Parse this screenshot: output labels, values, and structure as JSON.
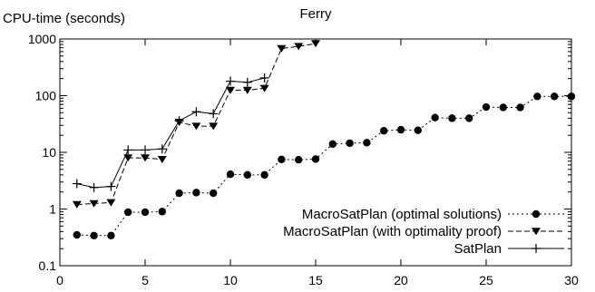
{
  "chart_data": {
    "type": "line",
    "title": "Ferry",
    "ylabel": "CPU-time (seconds)",
    "xlabel": "",
    "yscale": "log",
    "xlim": [
      0,
      30
    ],
    "ylim": [
      0.1,
      1000
    ],
    "xticks": [
      0,
      5,
      10,
      15,
      20,
      25,
      30
    ],
    "yticks": [
      0.1,
      1,
      10,
      100,
      1000
    ],
    "ytick_labels": [
      "0.1",
      "1",
      "10",
      "100",
      "1000"
    ],
    "legend_position": "inside-right-middle",
    "series": [
      {
        "name": "MacroSatPlan (optimal solutions)",
        "marker": "circle",
        "dash": "dotted",
        "x": [
          1,
          2,
          3,
          4,
          5,
          6,
          7,
          8,
          9,
          10,
          11,
          12,
          13,
          14,
          15,
          16,
          17,
          18,
          19,
          20,
          21,
          22,
          23,
          24,
          25,
          26,
          27,
          28,
          29,
          30
        ],
        "y": [
          0.35,
          0.34,
          0.34,
          0.88,
          0.88,
          0.9,
          1.9,
          1.95,
          1.9,
          4.1,
          4.0,
          4.0,
          7.5,
          7.4,
          7.6,
          14.0,
          14.5,
          14.8,
          24.0,
          25.0,
          24.5,
          41.0,
          40.0,
          40.0,
          63.0,
          62.0,
          62.0,
          97.0,
          97.0,
          97.0
        ]
      },
      {
        "name": "MacroSatPlan (with optimality proof)",
        "marker": "triangle-down",
        "dash": "dashed",
        "x": [
          1,
          2,
          3,
          4,
          5,
          6,
          7,
          8,
          9,
          10,
          11,
          12,
          13,
          14,
          15
        ],
        "y": [
          1.2,
          1.25,
          1.3,
          8.0,
          8.0,
          7.5,
          34.0,
          29.0,
          29.0,
          125.0,
          125.0,
          135.0,
          680.0,
          740.0,
          830.0
        ]
      },
      {
        "name": "SatPlan",
        "marker": "plus",
        "dash": "solid",
        "x": [
          1,
          2,
          3,
          4,
          5,
          6,
          7,
          8,
          9,
          10,
          11,
          12
        ],
        "y": [
          2.8,
          2.4,
          2.5,
          11.0,
          11.0,
          11.5,
          36.0,
          52.0,
          48.0,
          180.0,
          172.0,
          205.0
        ]
      }
    ]
  }
}
